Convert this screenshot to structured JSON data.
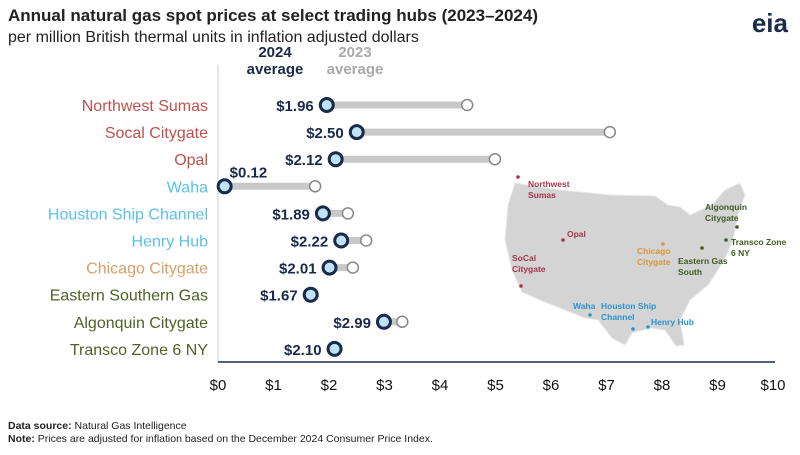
{
  "title": "Annual natural gas spot prices at select trading hubs (2023–2024)",
  "subtitle": "per million British thermal units in inflation adjusted dollars",
  "logo": "eia",
  "footer": {
    "source_label": "Data source:",
    "source": " Natural Gas Intelligence",
    "note_label": "Note:",
    "note": " Prices are adjusted for inflation based on the December 2024 Consumer Price Index."
  },
  "chart_data": {
    "type": "dumbbell",
    "xlim": [
      0,
      10
    ],
    "x_ticks": [
      "$0",
      "$1",
      "$2",
      "$3",
      "$4",
      "$5",
      "$6",
      "$7",
      "$8",
      "$9",
      "$10"
    ],
    "legend": {
      "y2024": "2024\naverage",
      "y2023": "2023\naverage"
    },
    "categories": [
      "Northwest Sumas",
      "Socal Citygate",
      "Opal",
      "Waha",
      "Houston Ship Channel",
      "Henry Hub",
      "Chicago Citygate",
      "Eastern Southern Gas",
      "Algonquin Citygate",
      "Transco Zone 6 NY"
    ],
    "category_colors": [
      "#c0504d",
      "#c0504d",
      "#c0504d",
      "#5bc0eb",
      "#5bc0eb",
      "#5bc0eb",
      "#d9a066",
      "#4f6228",
      "#4f6228",
      "#4f6228"
    ],
    "series": [
      {
        "name": "2024 average",
        "values": [
          1.96,
          2.5,
          2.12,
          0.12,
          1.89,
          2.22,
          2.01,
          1.67,
          2.99,
          2.1
        ],
        "labels": [
          "$1.96",
          "$2.50",
          "$2.12",
          "$0.12",
          "$1.89",
          "$2.22",
          "$2.01",
          "$1.67",
          "$2.99",
          "$2.10"
        ]
      },
      {
        "name": "2023 average",
        "values": [
          4.49,
          7.06,
          4.99,
          1.75,
          2.34,
          2.67,
          2.43,
          1.67,
          3.32,
          2.1
        ]
      }
    ]
  },
  "map": {
    "labels": [
      {
        "text": "Northwest\nSumas",
        "color": "#a8344a"
      },
      {
        "text": "Opal",
        "color": "#a8344a"
      },
      {
        "text": "SoCal\nCitygate",
        "color": "#a8344a"
      },
      {
        "text": "Chicago\nCitygate",
        "color": "#d9963f"
      },
      {
        "text": "Eastern Gas\nSouth",
        "color": "#3f5a22"
      },
      {
        "text": "Algonquin\nCitygate",
        "color": "#3f5a22"
      },
      {
        "text": "Transco Zone\n6 NY",
        "color": "#3f5a22"
      },
      {
        "text": "Waha",
        "color": "#2b94cf"
      },
      {
        "text": "Houston Ship\nChannel",
        "color": "#2b94cf"
      },
      {
        "text": "Henry Hub",
        "color": "#2b94cf"
      }
    ]
  }
}
